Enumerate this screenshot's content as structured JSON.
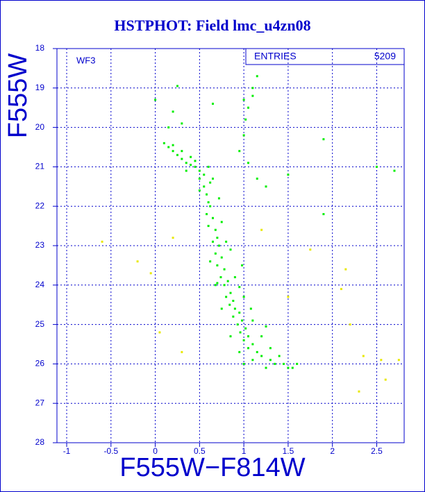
{
  "chart_data": {
    "type": "scatter",
    "title": "HSTPHOT: Field lmc_u4zn08",
    "x_label": "F555W−F814W",
    "y_label": "F555W",
    "annotation": "WF3",
    "stats": {
      "label": "ENTRIES",
      "value": 5209
    },
    "xlim": [
      -1.11,
      2.81
    ],
    "ylim": [
      28,
      18
    ],
    "xticks": [
      -1,
      -0.5,
      0,
      0.5,
      1,
      1.5,
      2,
      2.5
    ],
    "yticks": [
      18,
      19,
      20,
      21,
      22,
      23,
      24,
      25,
      26,
      27,
      28
    ],
    "grid": true,
    "series": [
      {
        "color": "#00ee00",
        "x": [
          0.1,
          0.15,
          0.2,
          0.25,
          0.3,
          0.35,
          0.4,
          0.45,
          0.5,
          0.55,
          0.2,
          0.3,
          0.4,
          0.45,
          0.6,
          0.35,
          0.5,
          0.62,
          0.55,
          0.58,
          0.6,
          0.62,
          0.58,
          0.65,
          0.6,
          0.68,
          0.7,
          0.65,
          0.72,
          0.68,
          0.75,
          0.7,
          0.78,
          0.74,
          0.82,
          0.78,
          0.85,
          0.8,
          0.88,
          0.84,
          0.9,
          0.95,
          0.88,
          0.98,
          0.93,
          1.02,
          0.96,
          1.05,
          1.0,
          1.1,
          1.05,
          1.15,
          1.2,
          1.1,
          1.3,
          1.35,
          1.45,
          1.5,
          1.55,
          1.25,
          1.0,
          0.95,
          0.85,
          0.75,
          0.68,
          0.62,
          0.9,
          1.0,
          1.1,
          1.2,
          1.3,
          0.8,
          0.75,
          0.72,
          0.5,
          0.65,
          0.7,
          0.95,
          1.08,
          1.25,
          1.4,
          1.6,
          0.98,
          0.85,
          1.0,
          1.05,
          1.1,
          1.02,
          1.1,
          1.15,
          1.0,
          0.95,
          1.05,
          1.15,
          1.25,
          0.65,
          0.0,
          0.2,
          0.25,
          0.3,
          0.15,
          1.9,
          1.5,
          2.5,
          2.7,
          1.9
        ],
        "y": [
          20.4,
          20.5,
          20.6,
          20.7,
          20.8,
          20.9,
          20.95,
          21.0,
          21.1,
          21.2,
          20.45,
          20.6,
          20.75,
          20.85,
          21.0,
          21.1,
          21.3,
          21.4,
          21.5,
          21.7,
          21.9,
          22.0,
          22.2,
          22.3,
          22.5,
          22.6,
          22.8,
          22.9,
          23.0,
          23.2,
          23.3,
          23.5,
          23.6,
          23.8,
          23.9,
          24.0,
          24.2,
          24.3,
          24.4,
          24.5,
          24.6,
          24.7,
          24.8,
          24.9,
          25.0,
          25.1,
          25.2,
          25.3,
          25.4,
          25.5,
          25.6,
          25.7,
          25.8,
          25.9,
          25.9,
          26.0,
          26.0,
          26.1,
          26.1,
          26.1,
          26.0,
          25.7,
          25.3,
          24.6,
          24.0,
          23.4,
          23.8,
          24.3,
          24.9,
          25.3,
          25.6,
          22.9,
          22.4,
          21.8,
          21.6,
          21.3,
          23.95,
          24.05,
          24.6,
          25.05,
          25.8,
          26.0,
          23.5,
          23.1,
          19.3,
          19.5,
          19.2,
          19.8,
          19.0,
          18.7,
          20.2,
          20.6,
          20.9,
          21.3,
          21.5,
          19.4,
          19.3,
          19.6,
          18.95,
          19.9,
          20.0,
          20.3,
          21.2,
          21.0,
          21.1,
          22.2
        ]
      },
      {
        "color": "#e8e800",
        "x": [
          -0.6,
          -0.2,
          0.2,
          1.2,
          1.75,
          2.15,
          1.5,
          2.2,
          2.1,
          0.3,
          2.35,
          2.55,
          2.75,
          2.6,
          2.3,
          -0.05,
          0.05
        ],
        "y": [
          22.9,
          23.4,
          22.8,
          22.6,
          23.1,
          23.6,
          24.3,
          25.0,
          24.1,
          25.7,
          25.8,
          25.9,
          25.9,
          26.4,
          26.7,
          23.7,
          25.2
        ]
      }
    ]
  }
}
